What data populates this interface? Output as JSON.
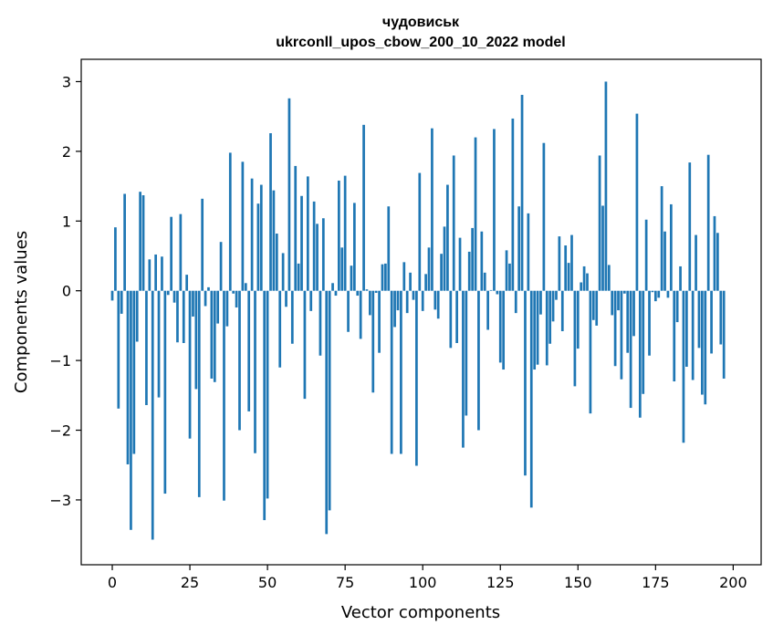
{
  "chart_data": {
    "type": "bar",
    "title_line1": "чудовиськ",
    "title_line2": "ukrconll_upos_cbow_200_10_2022 model",
    "xlabel": "Vector components",
    "ylabel": "Components values",
    "xlim": [
      -10,
      209
    ],
    "ylim": [
      -3.93,
      3.32
    ],
    "xticks": [
      0,
      25,
      50,
      75,
      100,
      125,
      150,
      175,
      200
    ],
    "yticks": [
      -3,
      -2,
      -1,
      0,
      1,
      2,
      3
    ],
    "grid": false,
    "bar_color": "#1f77b4",
    "values": [
      -0.14,
      0.91,
      -1.69,
      -0.33,
      1.39,
      -2.49,
      -3.43,
      -2.34,
      -0.73,
      1.42,
      1.37,
      -1.64,
      0.45,
      -3.57,
      0.52,
      -1.53,
      0.49,
      -2.91,
      -0.06,
      1.06,
      -0.17,
      -0.74,
      1.1,
      -0.75,
      0.23,
      -2.12,
      -0.37,
      -1.41,
      -2.96,
      1.32,
      -0.22,
      0.05,
      -1.26,
      -1.31,
      -0.47,
      0.7,
      -3.01,
      -0.51,
      1.98,
      -0.04,
      -0.24,
      -2.0,
      1.85,
      0.11,
      -1.73,
      1.61,
      -2.33,
      1.25,
      1.52,
      -3.29,
      -2.98,
      2.26,
      1.44,
      0.82,
      -1.1,
      0.54,
      -0.23,
      2.76,
      -0.76,
      1.79,
      0.39,
      1.36,
      -1.55,
      1.64,
      -0.29,
      1.28,
      0.96,
      -0.93,
      1.04,
      -3.49,
      -3.15,
      0.11,
      -0.07,
      1.58,
      0.62,
      1.65,
      -0.59,
      0.36,
      1.26,
      -0.07,
      -0.69,
      2.38,
      0.02,
      -0.35,
      -1.46,
      -0.03,
      -0.89,
      0.38,
      0.39,
      1.21,
      -2.34,
      -0.52,
      -0.28,
      -2.34,
      0.41,
      -0.32,
      0.26,
      -0.13,
      -2.51,
      1.69,
      -0.29,
      0.24,
      0.62,
      2.33,
      -0.27,
      -0.4,
      0.53,
      0.92,
      1.52,
      -0.82,
      1.94,
      -0.75,
      0.76,
      -2.25,
      -1.79,
      0.56,
      0.9,
      2.2,
      -2.0,
      0.85,
      0.26,
      -0.56,
      0.01,
      2.32,
      -0.05,
      -1.03,
      -1.13,
      0.58,
      0.39,
      2.47,
      -0.32,
      1.21,
      2.81,
      -2.65,
      1.11,
      -3.11,
      -1.13,
      -1.06,
      -0.34,
      2.12,
      -1.07,
      -0.76,
      -0.44,
      -0.13,
      0.78,
      -0.58,
      0.65,
      0.4,
      0.8,
      -1.37,
      -0.83,
      0.12,
      0.35,
      0.25,
      -1.76,
      -0.42,
      -0.5,
      1.94,
      1.22,
      3.0,
      0.37,
      -0.35,
      -1.08,
      -0.28,
      -1.27,
      -0.04,
      -0.89,
      -1.68,
      -0.65,
      2.54,
      -1.82,
      -1.48,
      1.02,
      -0.93,
      -0.02,
      -0.15,
      -0.1,
      1.5,
      0.85,
      -0.1,
      1.24,
      -1.3,
      -0.45,
      0.35,
      -2.18,
      -1.09,
      1.84,
      -1.28,
      0.8,
      -0.82,
      -1.49,
      -1.63,
      1.95,
      -0.9,
      1.07,
      0.83,
      -0.77,
      -1.26
    ]
  }
}
